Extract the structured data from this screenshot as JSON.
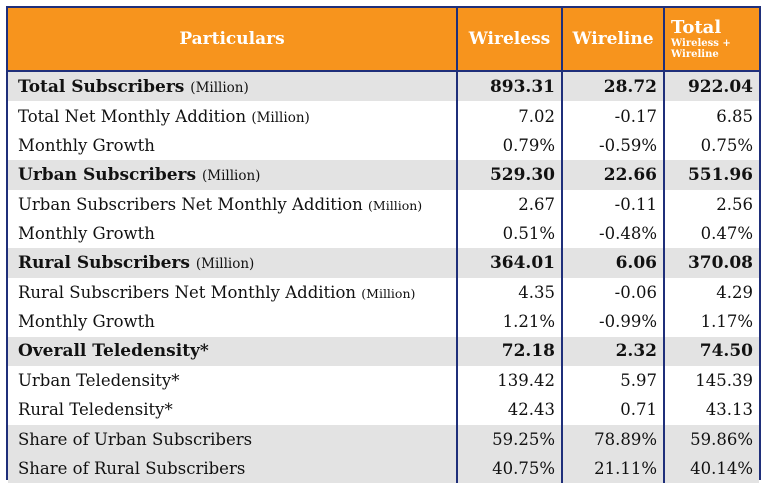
{
  "header": {
    "particulars": "Particulars",
    "wireless": "Wireless",
    "wireline": "Wireline",
    "total_main": "Total",
    "total_sub": "Wireless + Wireline"
  },
  "rows": [
    {
      "label": "Total Subscribers",
      "unit": "(Million)",
      "wireless": "893.31",
      "wireline": "28.72",
      "total": "922.04"
    },
    {
      "label": "Total Net Monthly Addition",
      "unit": "(Million)",
      "wireless": "7.02",
      "wireline": "-0.17",
      "total": "6.85"
    },
    {
      "label": "Monthly Growth",
      "unit": "",
      "wireless": "0.79%",
      "wireline": "-0.59%",
      "total": "0.75%"
    },
    {
      "label": "Urban Subscribers",
      "unit": "(Million)",
      "wireless": "529.30",
      "wireline": "22.66",
      "total": "551.96"
    },
    {
      "label": "Urban Subscribers Net Monthly Addition",
      "unit": "(Million)",
      "wireless": "2.67",
      "wireline": "-0.11",
      "total": "2.56"
    },
    {
      "label": "Monthly Growth",
      "unit": "",
      "wireless": "0.51%",
      "wireline": "-0.48%",
      "total": "0.47%"
    },
    {
      "label": "Rural Subscribers",
      "unit": "(Million)",
      "wireless": "364.01",
      "wireline": "6.06",
      "total": "370.08"
    },
    {
      "label": "Rural Subscribers Net Monthly Addition",
      "unit": "(Million)",
      "wireless": "4.35",
      "wireline": "-0.06",
      "total": "4.29"
    },
    {
      "label": "Monthly Growth",
      "unit": "",
      "wireless": "1.21%",
      "wireline": "-0.99%",
      "total": "1.17%"
    },
    {
      "label": "Overall Teledensity*",
      "unit": "",
      "wireless": "72.18",
      "wireline": "2.32",
      "total": "74.50"
    },
    {
      "label": "Urban Teledensity*",
      "unit": "",
      "wireless": "139.42",
      "wireline": "5.97",
      "total": "145.39"
    },
    {
      "label": "Rural Teledensity*",
      "unit": "",
      "wireless": "42.43",
      "wireline": "0.71",
      "total": "43.13"
    },
    {
      "label": "Share of Urban Subscribers",
      "unit": "",
      "wireless": "59.25%",
      "wireline": "78.89%",
      "total": "59.86%"
    },
    {
      "label": "Share of Rural Subscribers",
      "unit": "",
      "wireless": "40.75%",
      "wireline": "21.11%",
      "total": "40.14%"
    }
  ],
  "colors": {
    "header_bg": "#f7941d",
    "border": "#1f2f7a",
    "shaded_row": "#e3e3e3"
  }
}
